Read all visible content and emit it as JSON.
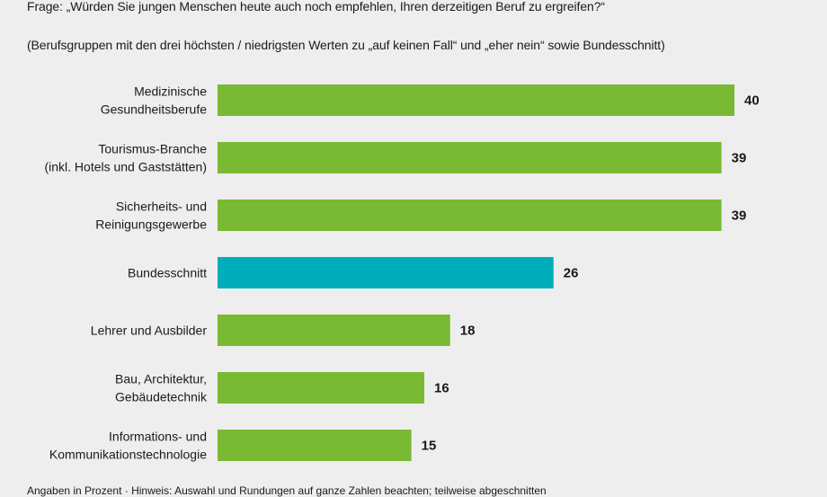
{
  "header": {
    "question": "Frage: „Würden Sie jungen Menschen heute auch noch empfehlen, Ihren derzeitigen Beruf zu ergreifen?“",
    "subtitle": "(Berufsgruppen mit den drei höchsten / niedrigsten Werten zu „auf keinen Fall“ und „eher nein“ sowie Bundesschnitt)"
  },
  "footnote": "Angaben in Prozent · Hinweis: Auswahl und Rundungen auf ganze Zahlen beachten; teilweise abgeschnitten",
  "colors": {
    "bar": "#7ab934",
    "highlight": "#00aebb",
    "background": "#eeeeee"
  },
  "chart_data": {
    "type": "bar",
    "orientation": "horizontal",
    "categories": [
      [
        "Medizinische",
        "Gesundheitsberufe"
      ],
      [
        "Tourismus-Branche",
        "(inkl. Hotels und Gaststätten)"
      ],
      [
        "Sicherheits- und",
        "Reinigungsgewerbe"
      ],
      [
        "Bundesschnitt"
      ],
      [
        "Lehrer und Ausbilder"
      ],
      [
        "Bau, Architektur,",
        "Gebäudetechnik"
      ],
      [
        "Informations- und",
        "Kommunikationstechnologie"
      ]
    ],
    "values": [
      40,
      39,
      39,
      26,
      18,
      16,
      15
    ],
    "highlight_index": 3,
    "xlim": [
      0,
      40
    ]
  }
}
